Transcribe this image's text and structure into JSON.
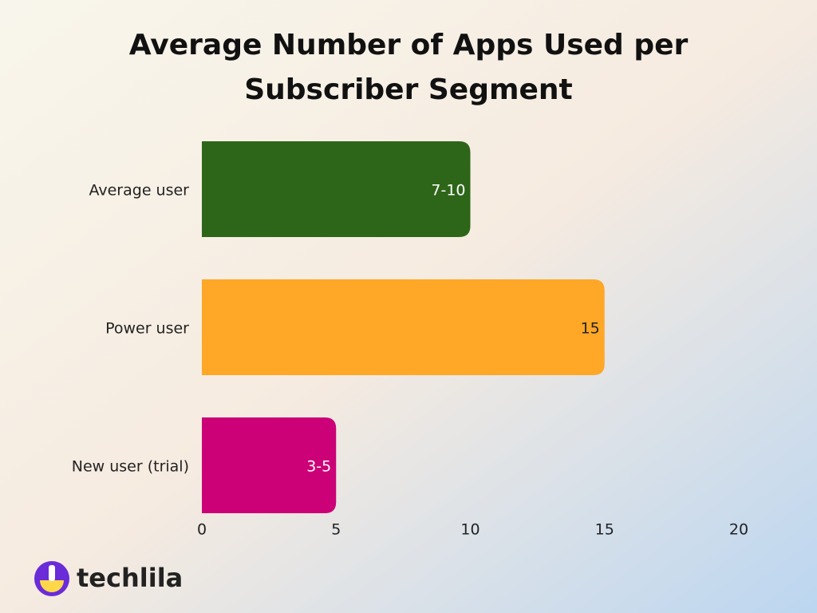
{
  "chart_data": {
    "type": "hbar",
    "title": "Average Number of Apps Used per Subscriber Segment",
    "categories": [
      "Average user",
      "Power user",
      "New user (trial)"
    ],
    "values": [
      10,
      15,
      5
    ],
    "value_labels": [
      "7-10",
      "15",
      "3-5"
    ],
    "colors": [
      "#2e6619",
      "#ffa726",
      "#cc0077"
    ],
    "value_label_colors": [
      "#ffffff",
      "#222222",
      "#ffffff"
    ],
    "xlim": [
      0,
      20
    ],
    "xticks": [
      0,
      5,
      10,
      15,
      20
    ],
    "grid": false
  },
  "brand": "techlila"
}
